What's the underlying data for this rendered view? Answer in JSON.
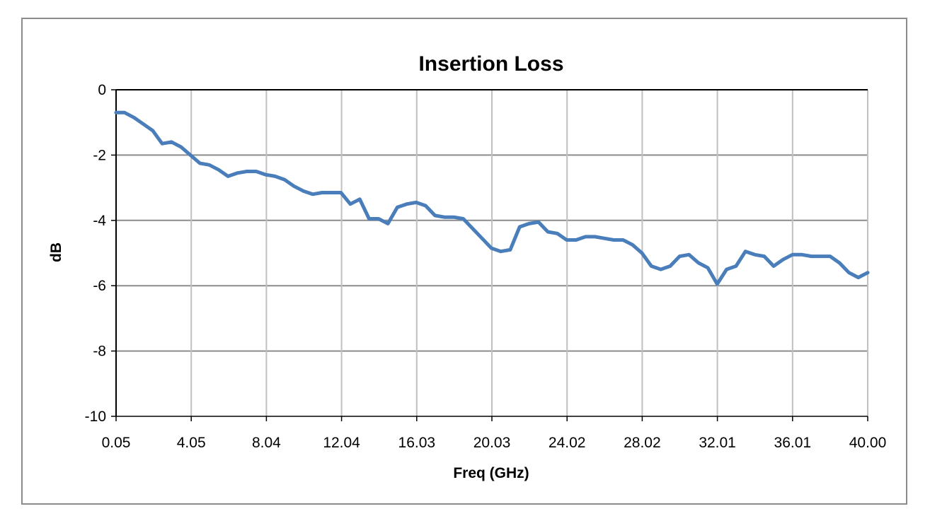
{
  "chart_data": {
    "type": "line",
    "title": "Insertion Loss",
    "xlabel": "Freq (GHz)",
    "ylabel": "dB",
    "xlim": [
      0.05,
      40.0
    ],
    "ylim": [
      -10,
      0
    ],
    "x_ticks": [
      "0.05",
      "4.05",
      "8.04",
      "12.04",
      "16.03",
      "20.03",
      "24.02",
      "28.02",
      "32.01",
      "36.01",
      "40.00"
    ],
    "y_ticks": [
      "0",
      "-2",
      "-4",
      "-6",
      "-8",
      "-10"
    ],
    "grid": true,
    "legend": "none",
    "series": [
      {
        "color": "#4a7ebb",
        "x": [
          0.05,
          0.5,
          1.0,
          1.5,
          2.0,
          2.5,
          3.0,
          3.5,
          4.0,
          4.5,
          5.0,
          5.5,
          6.0,
          6.5,
          7.0,
          7.5,
          8.0,
          8.5,
          9.0,
          9.5,
          10.0,
          10.5,
          11.0,
          11.5,
          12.0,
          12.5,
          13.0,
          13.5,
          14.0,
          14.5,
          15.0,
          15.5,
          16.0,
          16.5,
          17.0,
          17.5,
          18.0,
          18.5,
          19.0,
          19.5,
          20.0,
          20.5,
          21.0,
          21.5,
          22.0,
          22.5,
          23.0,
          23.5,
          24.0,
          24.5,
          25.0,
          25.5,
          26.0,
          26.5,
          27.0,
          27.5,
          28.0,
          28.5,
          29.0,
          29.5,
          30.0,
          30.5,
          31.0,
          31.5,
          32.0,
          32.5,
          33.0,
          33.5,
          34.0,
          34.5,
          35.0,
          35.5,
          36.0,
          36.5,
          37.0,
          37.5,
          38.0,
          38.5,
          39.0,
          39.5,
          40.0
        ],
        "y": [
          -0.7,
          -0.7,
          -0.85,
          -1.05,
          -1.25,
          -1.65,
          -1.6,
          -1.75,
          -2.0,
          -2.25,
          -2.3,
          -2.45,
          -2.65,
          -2.55,
          -2.5,
          -2.5,
          -2.6,
          -2.65,
          -2.75,
          -2.95,
          -3.1,
          -3.2,
          -3.15,
          -3.15,
          -3.15,
          -3.5,
          -3.35,
          -3.95,
          -3.95,
          -4.1,
          -3.6,
          -3.5,
          -3.45,
          -3.55,
          -3.85,
          -3.9,
          -3.9,
          -3.95,
          -4.25,
          -4.55,
          -4.85,
          -4.95,
          -4.9,
          -4.2,
          -4.1,
          -4.05,
          -4.35,
          -4.4,
          -4.6,
          -4.6,
          -4.5,
          -4.5,
          -4.55,
          -4.6,
          -4.6,
          -4.75,
          -5.0,
          -5.4,
          -5.5,
          -5.4,
          -5.1,
          -5.05,
          -5.3,
          -5.45,
          -5.95,
          -5.5,
          -5.4,
          -4.95,
          -5.05,
          -5.1,
          -5.4,
          -5.2,
          -5.05,
          -5.05,
          -5.1,
          -5.1,
          -5.1,
          -5.3,
          -5.6,
          -5.75,
          -5.6
        ]
      }
    ]
  }
}
